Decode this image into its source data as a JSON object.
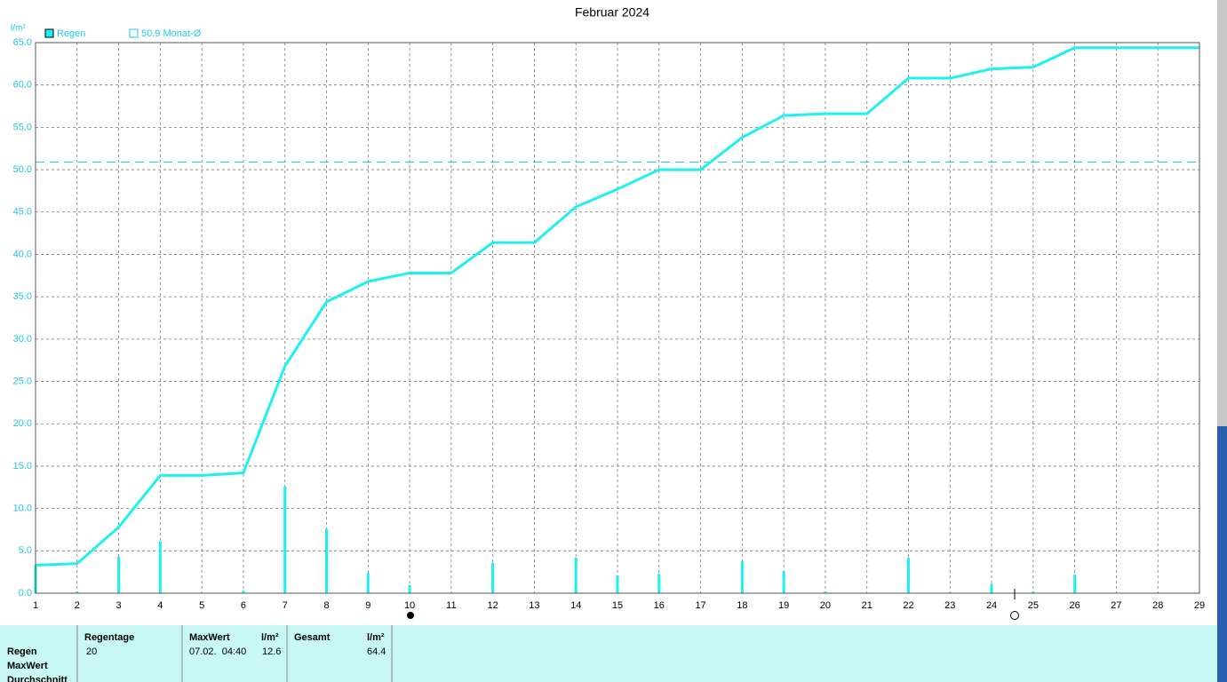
{
  "chart_data": {
    "type": "line",
    "title": "Februar 2024",
    "y_label": "l/m²",
    "x": [
      1,
      2,
      3,
      4,
      5,
      6,
      7,
      8,
      9,
      10,
      11,
      12,
      13,
      14,
      15,
      16,
      17,
      18,
      19,
      20,
      21,
      22,
      23,
      24,
      25,
      26,
      27,
      28,
      29
    ],
    "xlim": [
      1,
      29
    ],
    "xticks": [
      1,
      2,
      3,
      4,
      5,
      6,
      7,
      8,
      9,
      10,
      11,
      12,
      13,
      14,
      15,
      16,
      17,
      18,
      19,
      20,
      21,
      22,
      23,
      24,
      25,
      26,
      27,
      28,
      29
    ],
    "ylim": [
      0,
      65
    ],
    "yticks": [
      {
        "value": 0,
        "label": "0.0"
      },
      {
        "value": 5,
        "label": "5.0"
      },
      {
        "value": 10,
        "label": "10.0"
      },
      {
        "value": 15,
        "label": "15.0"
      },
      {
        "value": 20,
        "label": "20.0"
      },
      {
        "value": 25,
        "label": "25.0"
      },
      {
        "value": 30,
        "label": "30.0"
      },
      {
        "value": 35,
        "label": "35.0"
      },
      {
        "value": 40,
        "label": "40.0"
      },
      {
        "value": 45,
        "label": "45.0"
      },
      {
        "value": 50,
        "label": "50.0"
      },
      {
        "value": 55,
        "label": "55.0"
      },
      {
        "value": 60,
        "label": "60.0"
      },
      {
        "value": 65,
        "label": "65.0"
      }
    ],
    "grid": true,
    "series": [
      {
        "name": "Regen",
        "color": "#1ef0f0",
        "values": [
          3.3,
          3.5,
          7.8,
          13.9,
          13.9,
          14.2,
          26.8,
          34.4,
          36.8,
          37.8,
          37.8,
          41.4,
          41.4,
          45.6,
          47.7,
          50.0,
          50.0,
          53.8,
          56.4,
          56.6,
          56.6,
          60.8,
          60.8,
          61.9,
          62.1,
          64.4,
          64.4,
          64.4,
          64.4
        ],
        "daily_values": [
          3.3,
          0.2,
          4.3,
          6.1,
          0,
          0.3,
          12.6,
          7.6,
          2.4,
          1.0,
          0,
          3.6,
          0,
          4.2,
          2.1,
          2.3,
          0,
          3.8,
          2.6,
          0.2,
          0,
          4.2,
          0,
          1.1,
          0.2,
          2.2,
          0,
          0,
          0
        ]
      }
    ],
    "reference": {
      "value": 50.9,
      "label": "50.9 Monat-Ø"
    }
  },
  "table": {
    "row_labels": [
      "Regen",
      "MaxWert",
      "Durchschnitt"
    ],
    "regentage": {
      "header": "Regentage",
      "value": "20"
    },
    "maxwert": {
      "header": "MaxWert",
      "unit": "l/m²",
      "date": "07.02.  04:40",
      "value": "12.6"
    },
    "gesamt": {
      "header": "Gesamt",
      "unit": "l/m²",
      "value": "64.4"
    }
  }
}
